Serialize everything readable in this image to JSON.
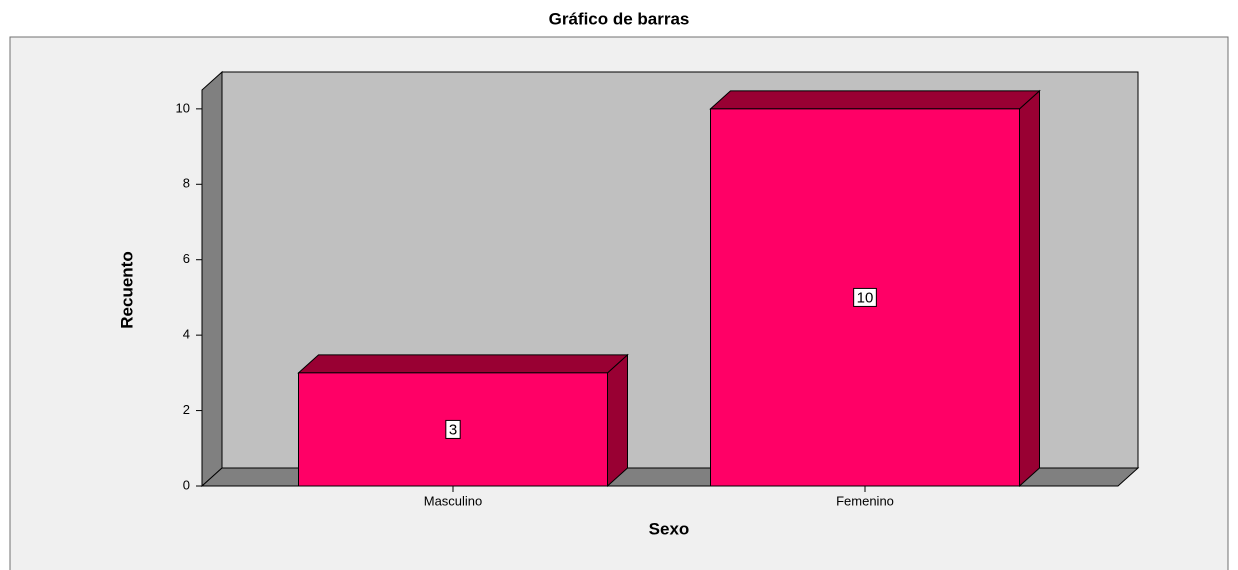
{
  "chart_data": {
    "type": "bar3d",
    "title": "Gráfico de barras",
    "x_label": "Sexo",
    "y_label": "Recuento",
    "categories": [
      "Masculino",
      "Femenino"
    ],
    "values": [
      3,
      10
    ],
    "color": "#ff0066",
    "side_color": "#990033",
    "ylim": [
      0,
      10.5
    ],
    "yticks": [
      0,
      2,
      4,
      6,
      8,
      10
    ],
    "grid": false
  }
}
